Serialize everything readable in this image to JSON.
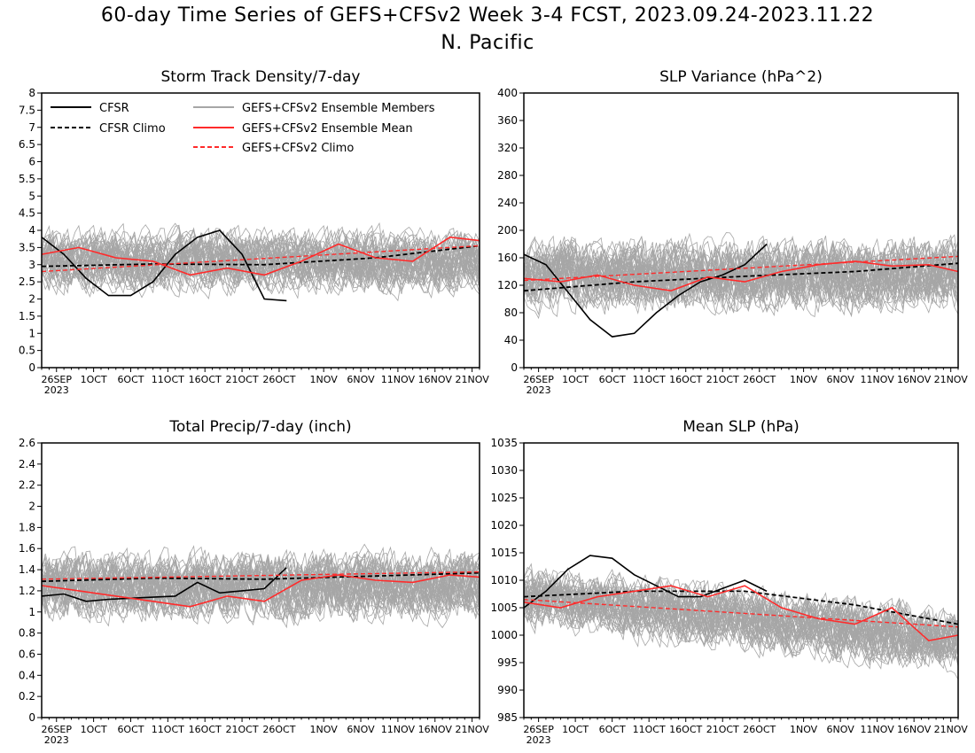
{
  "title_line1": "60-day Time Series of GEFS+CFSv2 Week 3-4 FCST, 2023.09.24-2023.11.22",
  "title_line2": "N. Pacific",
  "x_ticks": [
    "26SEP",
    "1OCT",
    "6OCT",
    "11OCT",
    "16OCT",
    "21OCT",
    "26OCT",
    "1NOV",
    "6NOV",
    "11NOV",
    "16NOV",
    "21NOV"
  ],
  "x_year_label": "2023",
  "x_range": [
    "2023-09-24",
    "2023-11-22"
  ],
  "colors": {
    "cfsr": "#000000",
    "members": "#a6a6a6",
    "mean": "#ff2b2b",
    "climo_model": "#ff2b2b"
  },
  "legend": {
    "cfsr": "CFSR",
    "cfsr_climo": "CFSR Climo",
    "members": "GEFS+CFSv2 Ensemble Members",
    "mean": "GEFS+CFSv2 Ensemble Mean",
    "model_climo": "GEFS+CFSv2 Climo"
  },
  "chart_data": [
    {
      "type": "line",
      "title": "Storm Track Density/7-day",
      "ylim": [
        0,
        8
      ],
      "yticks": [
        "0",
        "0.5",
        "1",
        "1.5",
        "2",
        "2.5",
        "3",
        "3.5",
        "4",
        "4.5",
        "5",
        "5.5",
        "6",
        "6.5",
        "7",
        "7.5",
        "8"
      ],
      "member_band": {
        "center": 3.1,
        "spread": 1.1,
        "count": 40
      },
      "series": [
        {
          "name": "CFSR",
          "x": [
            "2023-09-24",
            "2023-09-27",
            "2023-09-30",
            "2023-10-03",
            "2023-10-06",
            "2023-10-09",
            "2023-10-12",
            "2023-10-15",
            "2023-10-18",
            "2023-10-21",
            "2023-10-24",
            "2023-10-27"
          ],
          "values": [
            3.8,
            3.3,
            2.6,
            2.1,
            2.1,
            2.5,
            3.3,
            3.8,
            4.0,
            3.3,
            2.0,
            1.95
          ]
        },
        {
          "name": "CFSR Climo",
          "x": [
            "2023-09-24",
            "2023-10-09",
            "2023-10-24",
            "2023-11-08",
            "2023-11-22"
          ],
          "values": [
            2.95,
            3.02,
            3.0,
            3.2,
            3.55
          ]
        },
        {
          "name": "GEFS+CFSv2 Ensemble Mean",
          "x": [
            "2023-09-24",
            "2023-09-29",
            "2023-10-04",
            "2023-10-09",
            "2023-10-14",
            "2023-10-19",
            "2023-10-24",
            "2023-10-29",
            "2023-11-03",
            "2023-11-08",
            "2023-11-13",
            "2023-11-18",
            "2023-11-22"
          ],
          "values": [
            3.3,
            3.5,
            3.2,
            3.1,
            2.7,
            2.9,
            2.7,
            3.1,
            3.6,
            3.2,
            3.1,
            3.8,
            3.7
          ]
        },
        {
          "name": "GEFS+CFSv2 Climo",
          "x": [
            "2023-09-24",
            "2023-11-22"
          ],
          "values": [
            2.8,
            3.55
          ]
        }
      ]
    },
    {
      "type": "line",
      "title": "SLP Variance (hPa^2)",
      "ylim": [
        0,
        400
      ],
      "yticks": [
        "0",
        "40",
        "80",
        "120",
        "160",
        "200",
        "240",
        "280",
        "320",
        "360",
        "400"
      ],
      "member_band": {
        "center": 135,
        "spread": 65,
        "count": 40
      },
      "series": [
        {
          "name": "CFSR",
          "x": [
            "2023-09-24",
            "2023-09-27",
            "2023-09-30",
            "2023-10-03",
            "2023-10-06",
            "2023-10-09",
            "2023-10-12",
            "2023-10-15",
            "2023-10-18",
            "2023-10-21",
            "2023-10-24",
            "2023-10-27"
          ],
          "values": [
            165,
            150,
            110,
            70,
            45,
            50,
            80,
            105,
            125,
            135,
            150,
            180
          ]
        },
        {
          "name": "CFSR Climo",
          "x": [
            "2023-09-24",
            "2023-10-09",
            "2023-10-24",
            "2023-11-08",
            "2023-11-22"
          ],
          "values": [
            112,
            125,
            133,
            140,
            152
          ]
        },
        {
          "name": "GEFS+CFSv2 Ensemble Mean",
          "x": [
            "2023-09-24",
            "2023-09-29",
            "2023-10-04",
            "2023-10-09",
            "2023-10-14",
            "2023-10-19",
            "2023-10-24",
            "2023-10-29",
            "2023-11-03",
            "2023-11-08",
            "2023-11-13",
            "2023-11-18",
            "2023-11-22"
          ],
          "values": [
            130,
            125,
            135,
            120,
            112,
            132,
            125,
            140,
            150,
            155,
            148,
            150,
            140
          ]
        },
        {
          "name": "GEFS+CFSv2 Climo",
          "x": [
            "2023-09-24",
            "2023-11-22"
          ],
          "values": [
            127,
            162
          ]
        }
      ]
    },
    {
      "type": "line",
      "title": "Total Precip/7-day (inch)",
      "ylim": [
        0,
        2.6
      ],
      "yticks": [
        "0",
        "0.2",
        "0.4",
        "0.6",
        "0.8",
        "1",
        "1.2",
        "1.4",
        "1.6",
        "1.8",
        "2",
        "2.2",
        "2.4",
        "2.6"
      ],
      "member_band": {
        "center": 1.25,
        "spread": 0.4,
        "count": 40
      },
      "series": [
        {
          "name": "CFSR",
          "x": [
            "2023-09-24",
            "2023-09-27",
            "2023-09-30",
            "2023-10-03",
            "2023-10-06",
            "2023-10-09",
            "2023-10-12",
            "2023-10-15",
            "2023-10-18",
            "2023-10-21",
            "2023-10-24",
            "2023-10-27"
          ],
          "values": [
            1.15,
            1.17,
            1.1,
            1.12,
            1.13,
            1.14,
            1.15,
            1.28,
            1.18,
            1.2,
            1.22,
            1.42
          ]
        },
        {
          "name": "CFSR Climo",
          "x": [
            "2023-09-24",
            "2023-10-09",
            "2023-10-24",
            "2023-11-08",
            "2023-11-22"
          ],
          "values": [
            1.29,
            1.32,
            1.31,
            1.34,
            1.37
          ]
        },
        {
          "name": "GEFS+CFSv2 Ensemble Mean",
          "x": [
            "2023-09-24",
            "2023-09-29",
            "2023-10-04",
            "2023-10-09",
            "2023-10-14",
            "2023-10-19",
            "2023-10-24",
            "2023-10-29",
            "2023-11-03",
            "2023-11-08",
            "2023-11-13",
            "2023-11-18",
            "2023-11-22"
          ],
          "values": [
            1.25,
            1.2,
            1.15,
            1.1,
            1.05,
            1.15,
            1.1,
            1.3,
            1.35,
            1.3,
            1.28,
            1.35,
            1.33
          ]
        },
        {
          "name": "GEFS+CFSv2 Climo",
          "x": [
            "2023-09-24",
            "2023-11-22"
          ],
          "values": [
            1.31,
            1.38
          ]
        }
      ]
    },
    {
      "type": "line",
      "title": "Mean SLP (hPa)",
      "ylim": [
        985,
        1035
      ],
      "yticks": [
        "985",
        "990",
        "995",
        "1000",
        "1005",
        "1010",
        "1015",
        "1020",
        "1025",
        "1030",
        "1035"
      ],
      "member_band": {
        "center_start": 1007,
        "center_end": 999,
        "spread": 7,
        "count": 40
      },
      "series": [
        {
          "name": "CFSR",
          "x": [
            "2023-09-24",
            "2023-09-27",
            "2023-09-30",
            "2023-10-03",
            "2023-10-06",
            "2023-10-09",
            "2023-10-12",
            "2023-10-15",
            "2023-10-18",
            "2023-10-21",
            "2023-10-24",
            "2023-10-27"
          ],
          "values": [
            1005,
            1008,
            1012,
            1014.5,
            1014,
            1011,
            1009,
            1007,
            1007,
            1008.5,
            1010,
            1008
          ]
        },
        {
          "name": "CFSR Climo",
          "x": [
            "2023-09-24",
            "2023-10-09",
            "2023-10-24",
            "2023-11-08",
            "2023-11-22"
          ],
          "values": [
            1007,
            1008,
            1008,
            1005.5,
            1002
          ]
        },
        {
          "name": "GEFS+CFSv2 Ensemble Mean",
          "x": [
            "2023-09-24",
            "2023-09-29",
            "2023-10-04",
            "2023-10-09",
            "2023-10-14",
            "2023-10-19",
            "2023-10-24",
            "2023-10-29",
            "2023-11-03",
            "2023-11-08",
            "2023-11-13",
            "2023-11-18",
            "2023-11-22"
          ],
          "values": [
            1006,
            1005,
            1007,
            1008,
            1009,
            1007,
            1009,
            1005,
            1003,
            1002,
            1005,
            999,
            1000
          ]
        },
        {
          "name": "GEFS+CFSv2 Climo",
          "x": [
            "2023-09-24",
            "2023-11-22"
          ],
          "values": [
            1006.5,
            1001.5
          ]
        }
      ]
    }
  ]
}
